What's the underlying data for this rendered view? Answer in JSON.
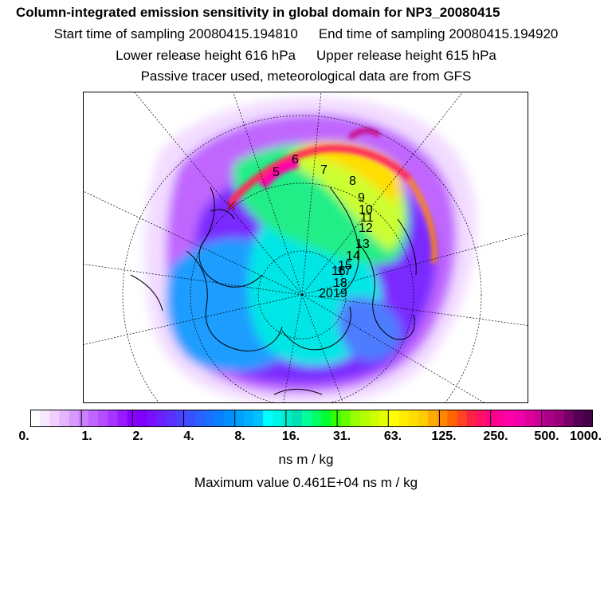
{
  "header": {
    "title": "Column-integrated emission sensitivity in global domain for NP3_20080415",
    "start_label": "Start time of sampling 20080415.194810",
    "end_label": "End time of sampling 20080415.194920",
    "lower_label": "Lower release height  616 hPa",
    "upper_label": "Upper release height  615 hPa",
    "tracer_note": "Passive tracer used, meteorological data are from GFS"
  },
  "map": {
    "projection": "polar stereographic, North Pole",
    "track_labels": [
      "5",
      "6",
      "7",
      "8",
      "9",
      "10",
      "11",
      "12",
      "13",
      "14",
      "15",
      "16",
      "17",
      "18",
      "19",
      "20"
    ]
  },
  "colorbar": {
    "tick_labels": [
      "0.",
      "1.",
      "2.",
      "4.",
      "8.",
      "16.",
      "31.",
      "63.",
      "125.",
      "250.",
      "500.",
      "1000."
    ],
    "unit": "ns m / kg",
    "colors": [
      "#ffffff",
      "#f7e8ff",
      "#efd0ff",
      "#e4b4ff",
      "#d79aff",
      "#cc80ff",
      "#bf66ff",
      "#b44dff",
      "#a633ff",
      "#9a1aff",
      "#8c00ff",
      "#7f00ff",
      "#7a10ff",
      "#6a20ff",
      "#5a30ff",
      "#4a40ff",
      "#3a50ff",
      "#2a60ff",
      "#1a70ff",
      "#0a80ff",
      "#0090ff",
      "#00a0ff",
      "#00b0ff",
      "#00c0ff",
      "#00ffff",
      "#00f5e6",
      "#00ebcc",
      "#00e1b3",
      "#00ff99",
      "#00ff66",
      "#00ff33",
      "#33ff00",
      "#66ff00",
      "#99ff00",
      "#b3ff00",
      "#ccff00",
      "#e6ff00",
      "#ffff00",
      "#ffee00",
      "#ffdd00",
      "#ffcc00",
      "#ffaa00",
      "#ff8800",
      "#ff6600",
      "#ff4422",
      "#ff2244",
      "#ff1166",
      "#ff0088",
      "#ff0099",
      "#ff00aa",
      "#ee00aa",
      "#dd0099",
      "#cc0099",
      "#aa0088",
      "#990077",
      "#770066",
      "#550055",
      "#440044"
    ]
  },
  "max_value_label": "Maximum value  0.461E+04 ns m / kg"
}
